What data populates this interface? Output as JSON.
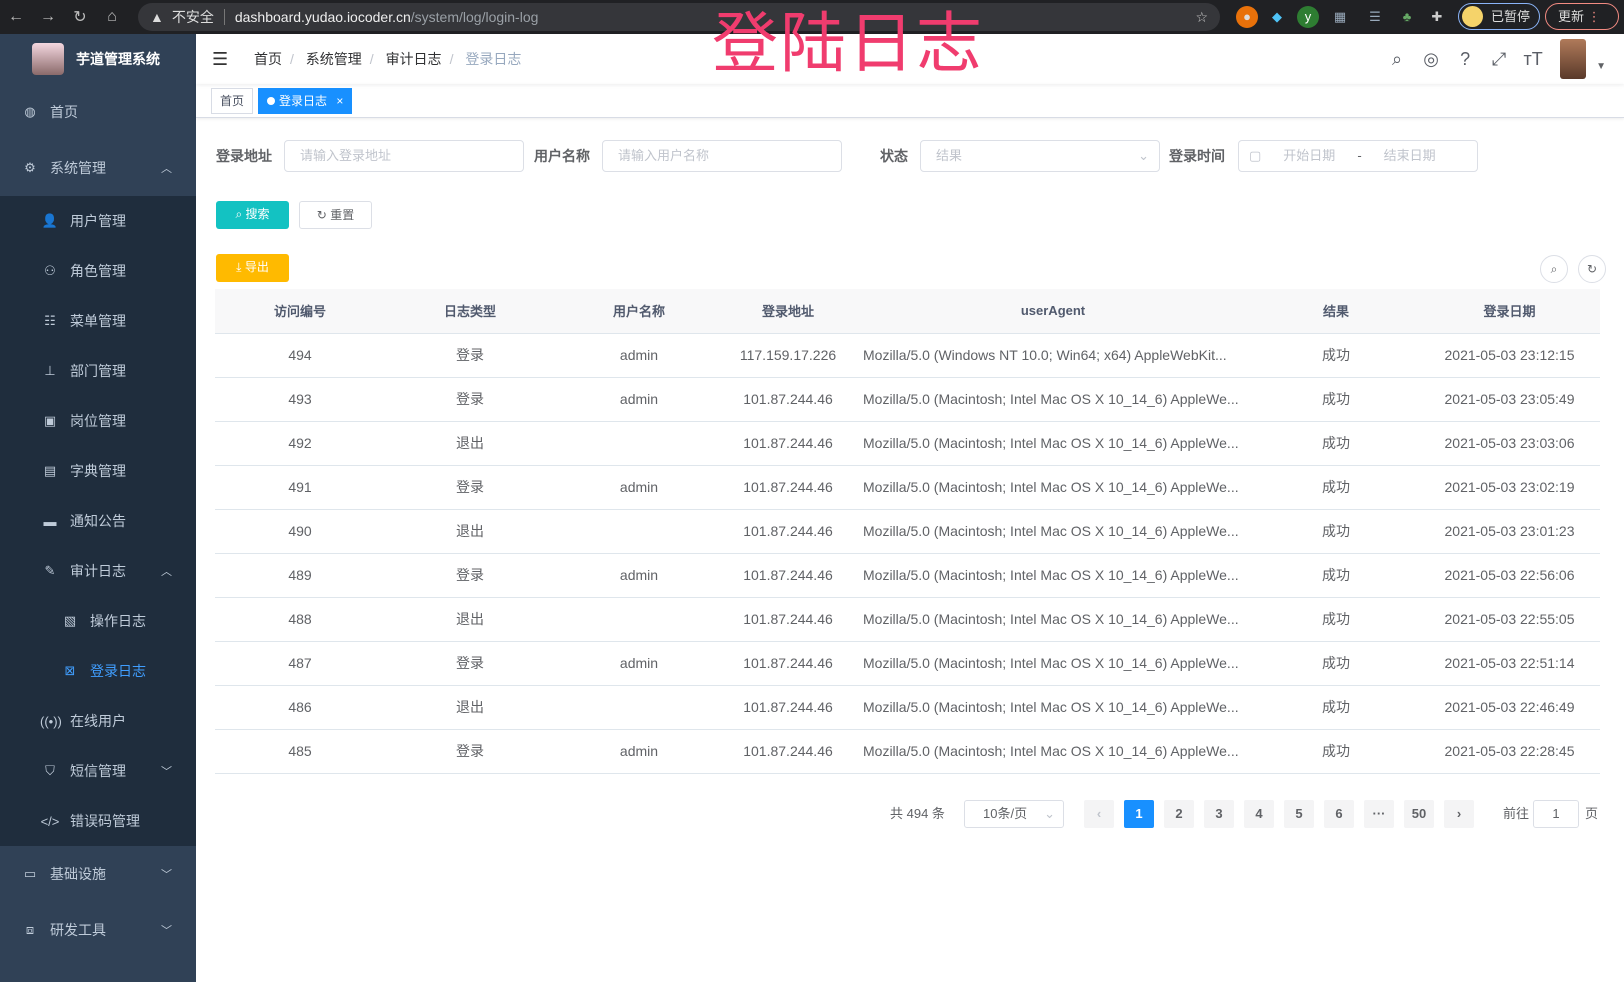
{
  "browser": {
    "security": "不安全",
    "host": "dashboard.yudao.iocoder.cn",
    "path": "/system/log/login-log",
    "paused": "已暂停",
    "update": "更新"
  },
  "overlay_title": "登陆日志",
  "sidebar": {
    "title": "芋道管理系统",
    "items": [
      {
        "label": "首页",
        "icon": "dashboard-icon"
      },
      {
        "label": "系统管理",
        "icon": "gear-icon",
        "children": [
          {
            "label": "用户管理",
            "icon": "user-icon"
          },
          {
            "label": "角色管理",
            "icon": "peoples-icon"
          },
          {
            "label": "菜单管理",
            "icon": "tree-table-icon"
          },
          {
            "label": "部门管理",
            "icon": "tree-icon"
          },
          {
            "label": "岗位管理",
            "icon": "post-icon"
          },
          {
            "label": "字典管理",
            "icon": "dict-icon"
          },
          {
            "label": "通知公告",
            "icon": "message-icon"
          },
          {
            "label": "审计日志",
            "icon": "log-icon",
            "children": [
              {
                "label": "操作日志",
                "icon": "form-icon"
              },
              {
                "label": "登录日志",
                "icon": "logininfor-icon",
                "active": true
              }
            ]
          },
          {
            "label": "在线用户",
            "icon": "online-icon"
          },
          {
            "label": "短信管理",
            "icon": "shield-icon"
          },
          {
            "label": "错误码管理",
            "icon": "code-icon"
          }
        ]
      },
      {
        "label": "基础设施",
        "icon": "monitor-icon"
      },
      {
        "label": "研发工具",
        "icon": "tool-icon"
      }
    ]
  },
  "breadcrumb": [
    "首页",
    "系统管理",
    "审计日志",
    "登录日志"
  ],
  "tags": [
    {
      "label": "首页"
    },
    {
      "label": "登录日志",
      "active": true
    }
  ],
  "filters": {
    "address": {
      "label": "登录地址",
      "placeholder": "请输入登录地址"
    },
    "username": {
      "label": "用户名称",
      "placeholder": "请输入用户名称"
    },
    "status": {
      "label": "状态",
      "placeholder": "结果"
    },
    "time": {
      "label": "登录时间",
      "start": "开始日期",
      "sep": "-",
      "end": "结束日期"
    }
  },
  "buttons": {
    "search": "搜索",
    "reset": "重置",
    "export": "导出"
  },
  "colors": {
    "sidebar": "#304156",
    "primary": "#1890ff",
    "search": "#13c2c2",
    "export": "#ffba00"
  },
  "table": {
    "columns": [
      "访问编号",
      "日志类型",
      "用户名称",
      "登录地址",
      "userAgent",
      "结果",
      "登录日期"
    ],
    "rows": [
      [
        "494",
        "登录",
        "admin",
        "117.159.17.226",
        "Mozilla/5.0 (Windows NT 10.0; Win64; x64) AppleWebKit...",
        "成功",
        "2021-05-03 23:12:15"
      ],
      [
        "493",
        "登录",
        "admin",
        "101.87.244.46",
        "Mozilla/5.0 (Macintosh; Intel Mac OS X 10_14_6) AppleWe...",
        "成功",
        "2021-05-03 23:05:49"
      ],
      [
        "492",
        "退出",
        "",
        "101.87.244.46",
        "Mozilla/5.0 (Macintosh; Intel Mac OS X 10_14_6) AppleWe...",
        "成功",
        "2021-05-03 23:03:06"
      ],
      [
        "491",
        "登录",
        "admin",
        "101.87.244.46",
        "Mozilla/5.0 (Macintosh; Intel Mac OS X 10_14_6) AppleWe...",
        "成功",
        "2021-05-03 23:02:19"
      ],
      [
        "490",
        "退出",
        "",
        "101.87.244.46",
        "Mozilla/5.0 (Macintosh; Intel Mac OS X 10_14_6) AppleWe...",
        "成功",
        "2021-05-03 23:01:23"
      ],
      [
        "489",
        "登录",
        "admin",
        "101.87.244.46",
        "Mozilla/5.0 (Macintosh; Intel Mac OS X 10_14_6) AppleWe...",
        "成功",
        "2021-05-03 22:56:06"
      ],
      [
        "488",
        "退出",
        "",
        "101.87.244.46",
        "Mozilla/5.0 (Macintosh; Intel Mac OS X 10_14_6) AppleWe...",
        "成功",
        "2021-05-03 22:55:05"
      ],
      [
        "487",
        "登录",
        "admin",
        "101.87.244.46",
        "Mozilla/5.0 (Macintosh; Intel Mac OS X 10_14_6) AppleWe...",
        "成功",
        "2021-05-03 22:51:14"
      ],
      [
        "486",
        "退出",
        "",
        "101.87.244.46",
        "Mozilla/5.0 (Macintosh; Intel Mac OS X 10_14_6) AppleWe...",
        "成功",
        "2021-05-03 22:46:49"
      ],
      [
        "485",
        "登录",
        "admin",
        "101.87.244.46",
        "Mozilla/5.0 (Macintosh; Intel Mac OS X 10_14_6) AppleWe...",
        "成功",
        "2021-05-03 22:28:45"
      ]
    ]
  },
  "pagination": {
    "total": "共 494 条",
    "page_size": "10条/页",
    "pages": [
      "1",
      "2",
      "3",
      "4",
      "5",
      "6",
      "···",
      "50"
    ],
    "current": "1",
    "goto_label": "前往",
    "goto_value": "1",
    "goto_suffix": "页"
  }
}
